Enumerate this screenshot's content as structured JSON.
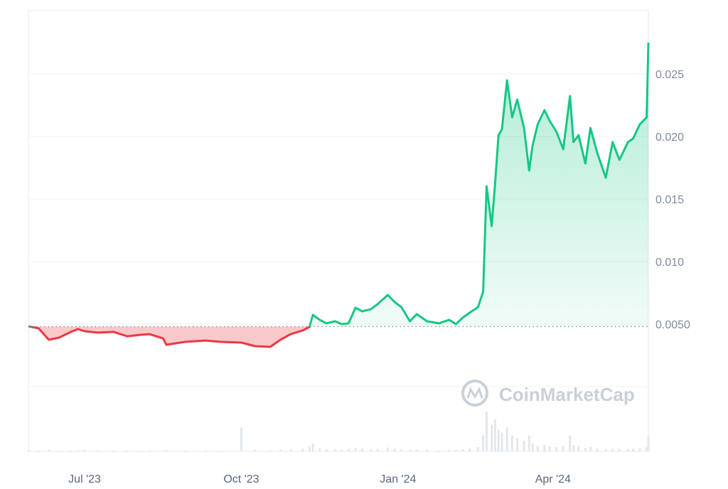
{
  "chart_data": {
    "type": "area",
    "title": "",
    "xlabel": "",
    "ylabel": "",
    "x_tick_labels": [
      "Jul '23",
      "Oct '23",
      "Jan '24",
      "Apr '24"
    ],
    "x_tick_dates": [
      "2023-07-01",
      "2023-10-01",
      "2024-01-01",
      "2024-04-01"
    ],
    "y_tick_labels": [
      "0.0050",
      "0.010",
      "0.015",
      "0.020",
      "0.025"
    ],
    "y_tick_values": [
      0.005,
      0.01,
      0.015,
      0.02,
      0.025
    ],
    "ylim": [
      0.0,
      0.0285
    ],
    "xlim": [
      "2023-05-29",
      "2024-05-27"
    ],
    "baseline": 0.0048,
    "grid": true,
    "colors": {
      "up": "#16c784",
      "down": "#ea3943",
      "grid": "#eff2f5",
      "axis_text": "#808a9d"
    },
    "watermark": "CoinMarketCap",
    "series": [
      {
        "x": [
          "2023-05-29",
          "2023-06-04",
          "2023-06-10",
          "2023-06-16",
          "2023-06-23",
          "2023-06-27",
          "2023-07-01",
          "2023-07-09",
          "2023-07-18",
          "2023-07-26",
          "2023-08-03",
          "2023-08-08",
          "2023-08-16",
          "2023-08-18",
          "2023-08-29",
          "2023-09-10",
          "2023-09-19",
          "2023-10-01",
          "2023-10-09",
          "2023-10-18",
          "2023-10-24",
          "2023-10-30",
          "2023-11-06",
          "2023-11-10",
          "2023-11-12",
          "2023-11-16",
          "2023-11-20",
          "2023-11-25",
          "2023-11-29",
          "2023-12-03",
          "2023-12-07",
          "2023-12-11",
          "2023-12-16",
          "2023-12-20",
          "2023-12-26",
          "2023-12-30",
          "2024-01-03",
          "2024-01-08",
          "2024-01-12",
          "2024-01-18",
          "2024-01-25",
          "2024-01-31",
          "2024-02-04",
          "2024-02-08",
          "2024-02-12",
          "2024-02-17",
          "2024-02-20",
          "2024-02-22",
          "2024-02-25",
          "2024-02-27",
          "2024-02-29",
          "2024-03-02",
          "2024-03-05",
          "2024-03-08",
          "2024-03-11",
          "2024-03-15",
          "2024-03-18",
          "2024-03-20",
          "2024-03-23",
          "2024-03-27",
          "2024-03-30",
          "2024-04-03",
          "2024-04-07",
          "2024-04-11",
          "2024-04-13",
          "2024-04-16",
          "2024-04-20",
          "2024-04-23",
          "2024-04-27",
          "2024-05-02",
          "2024-05-06",
          "2024-05-10",
          "2024-05-15",
          "2024-05-18",
          "2024-05-22",
          "2024-05-26",
          "2024-05-27"
        ],
        "y": [
          0.00483,
          0.00466,
          0.00375,
          0.00392,
          0.00438,
          0.0046,
          0.00443,
          0.00432,
          0.00438,
          0.00403,
          0.00415,
          0.0042,
          0.00386,
          0.00335,
          0.00358,
          0.00369,
          0.00358,
          0.00352,
          0.00324,
          0.00318,
          0.00375,
          0.0042,
          0.00449,
          0.00477,
          0.00574,
          0.00534,
          0.00506,
          0.00523,
          0.005,
          0.00506,
          0.00631,
          0.00602,
          0.00619,
          0.00659,
          0.00733,
          0.00676,
          0.00636,
          0.00523,
          0.0058,
          0.00523,
          0.00506,
          0.00534,
          0.005,
          0.00551,
          0.00591,
          0.00636,
          0.00761,
          0.01602,
          0.01284,
          0.01625,
          0.02011,
          0.02057,
          0.02449,
          0.02153,
          0.02295,
          0.02068,
          0.01727,
          0.01926,
          0.02097,
          0.0221,
          0.02125,
          0.0204,
          0.01898,
          0.02324,
          0.01955,
          0.02011,
          0.01784,
          0.02068,
          0.01869,
          0.0167,
          0.01955,
          0.01813,
          0.01955,
          0.01983,
          0.02097,
          0.02153,
          0.0275
        ],
        "volume_relative": [
          0.02,
          0.02,
          0.03,
          0.02,
          0.02,
          0.02,
          0.03,
          0.02,
          0.02,
          0.02,
          0.02,
          0.02,
          0.02,
          0.03,
          0.02,
          0.02,
          0.02,
          0.45,
          0.03,
          0.02,
          0.03,
          0.04,
          0.05,
          0.1,
          0.15,
          0.06,
          0.04,
          0.04,
          0.03,
          0.04,
          0.06,
          0.05,
          0.04,
          0.05,
          0.07,
          0.05,
          0.04,
          0.03,
          0.03,
          0.03,
          0.02,
          0.03,
          0.03,
          0.04,
          0.05,
          0.08,
          0.3,
          0.75,
          0.5,
          0.6,
          0.4,
          0.35,
          0.45,
          0.3,
          0.25,
          0.2,
          0.3,
          0.15,
          0.1,
          0.12,
          0.1,
          0.08,
          0.1,
          0.3,
          0.12,
          0.1,
          0.06,
          0.08,
          0.05,
          0.04,
          0.05,
          0.04,
          0.05,
          0.05,
          0.06,
          0.08,
          0.3
        ]
      }
    ]
  }
}
